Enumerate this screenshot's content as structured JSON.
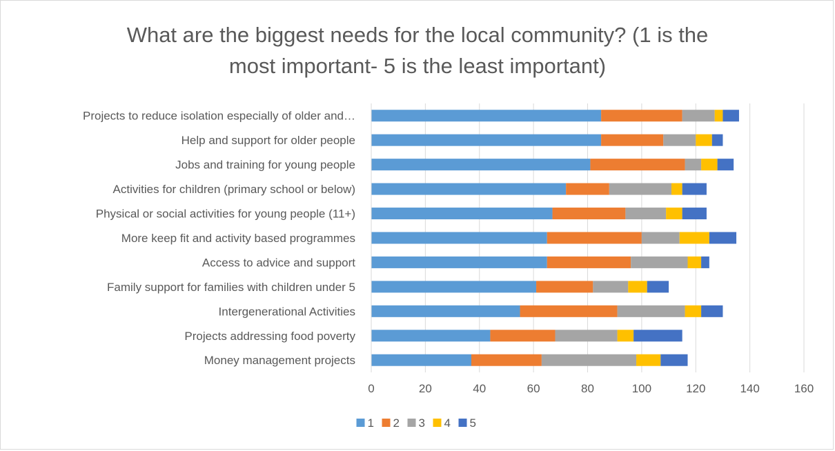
{
  "chart_data": {
    "type": "bar",
    "orientation": "horizontal",
    "stacked": true,
    "title": "What are the biggest needs for the local community? (1 is the\nmost important- 5 is the least important)",
    "categories": [
      "Projects to reduce isolation especially of older and…",
      "Help and support for older people",
      "Jobs and training for young people",
      "Activities for children (primary school or below)",
      "Physical or social activities for young people (11+)",
      "More keep fit and activity based programmes",
      "Access to advice and support",
      "Family support for families with children under 5",
      "Intergenerational Activities",
      "Projects addressing food poverty",
      "Money management projects"
    ],
    "series": [
      {
        "name": "1",
        "color": "#5b9bd5",
        "values": [
          85,
          85,
          81,
          72,
          67,
          65,
          65,
          61,
          55,
          44,
          37
        ]
      },
      {
        "name": "2",
        "color": "#ed7d31",
        "values": [
          30,
          23,
          35,
          16,
          27,
          35,
          31,
          21,
          36,
          24,
          26
        ]
      },
      {
        "name": "3",
        "color": "#a5a5a5",
        "values": [
          12,
          12,
          6,
          23,
          15,
          14,
          21,
          13,
          25,
          23,
          35
        ]
      },
      {
        "name": "4",
        "color": "#ffc000",
        "values": [
          3,
          6,
          6,
          4,
          6,
          11,
          5,
          7,
          6,
          6,
          9
        ]
      },
      {
        "name": "5",
        "color": "#4472c4",
        "values": [
          6,
          4,
          6,
          9,
          9,
          10,
          3,
          8,
          8,
          18,
          10
        ]
      }
    ],
    "xlim": [
      0,
      160
    ],
    "xticks": [
      0,
      20,
      40,
      60,
      80,
      100,
      120,
      140,
      160
    ],
    "grid": true,
    "legend": "bottom"
  }
}
